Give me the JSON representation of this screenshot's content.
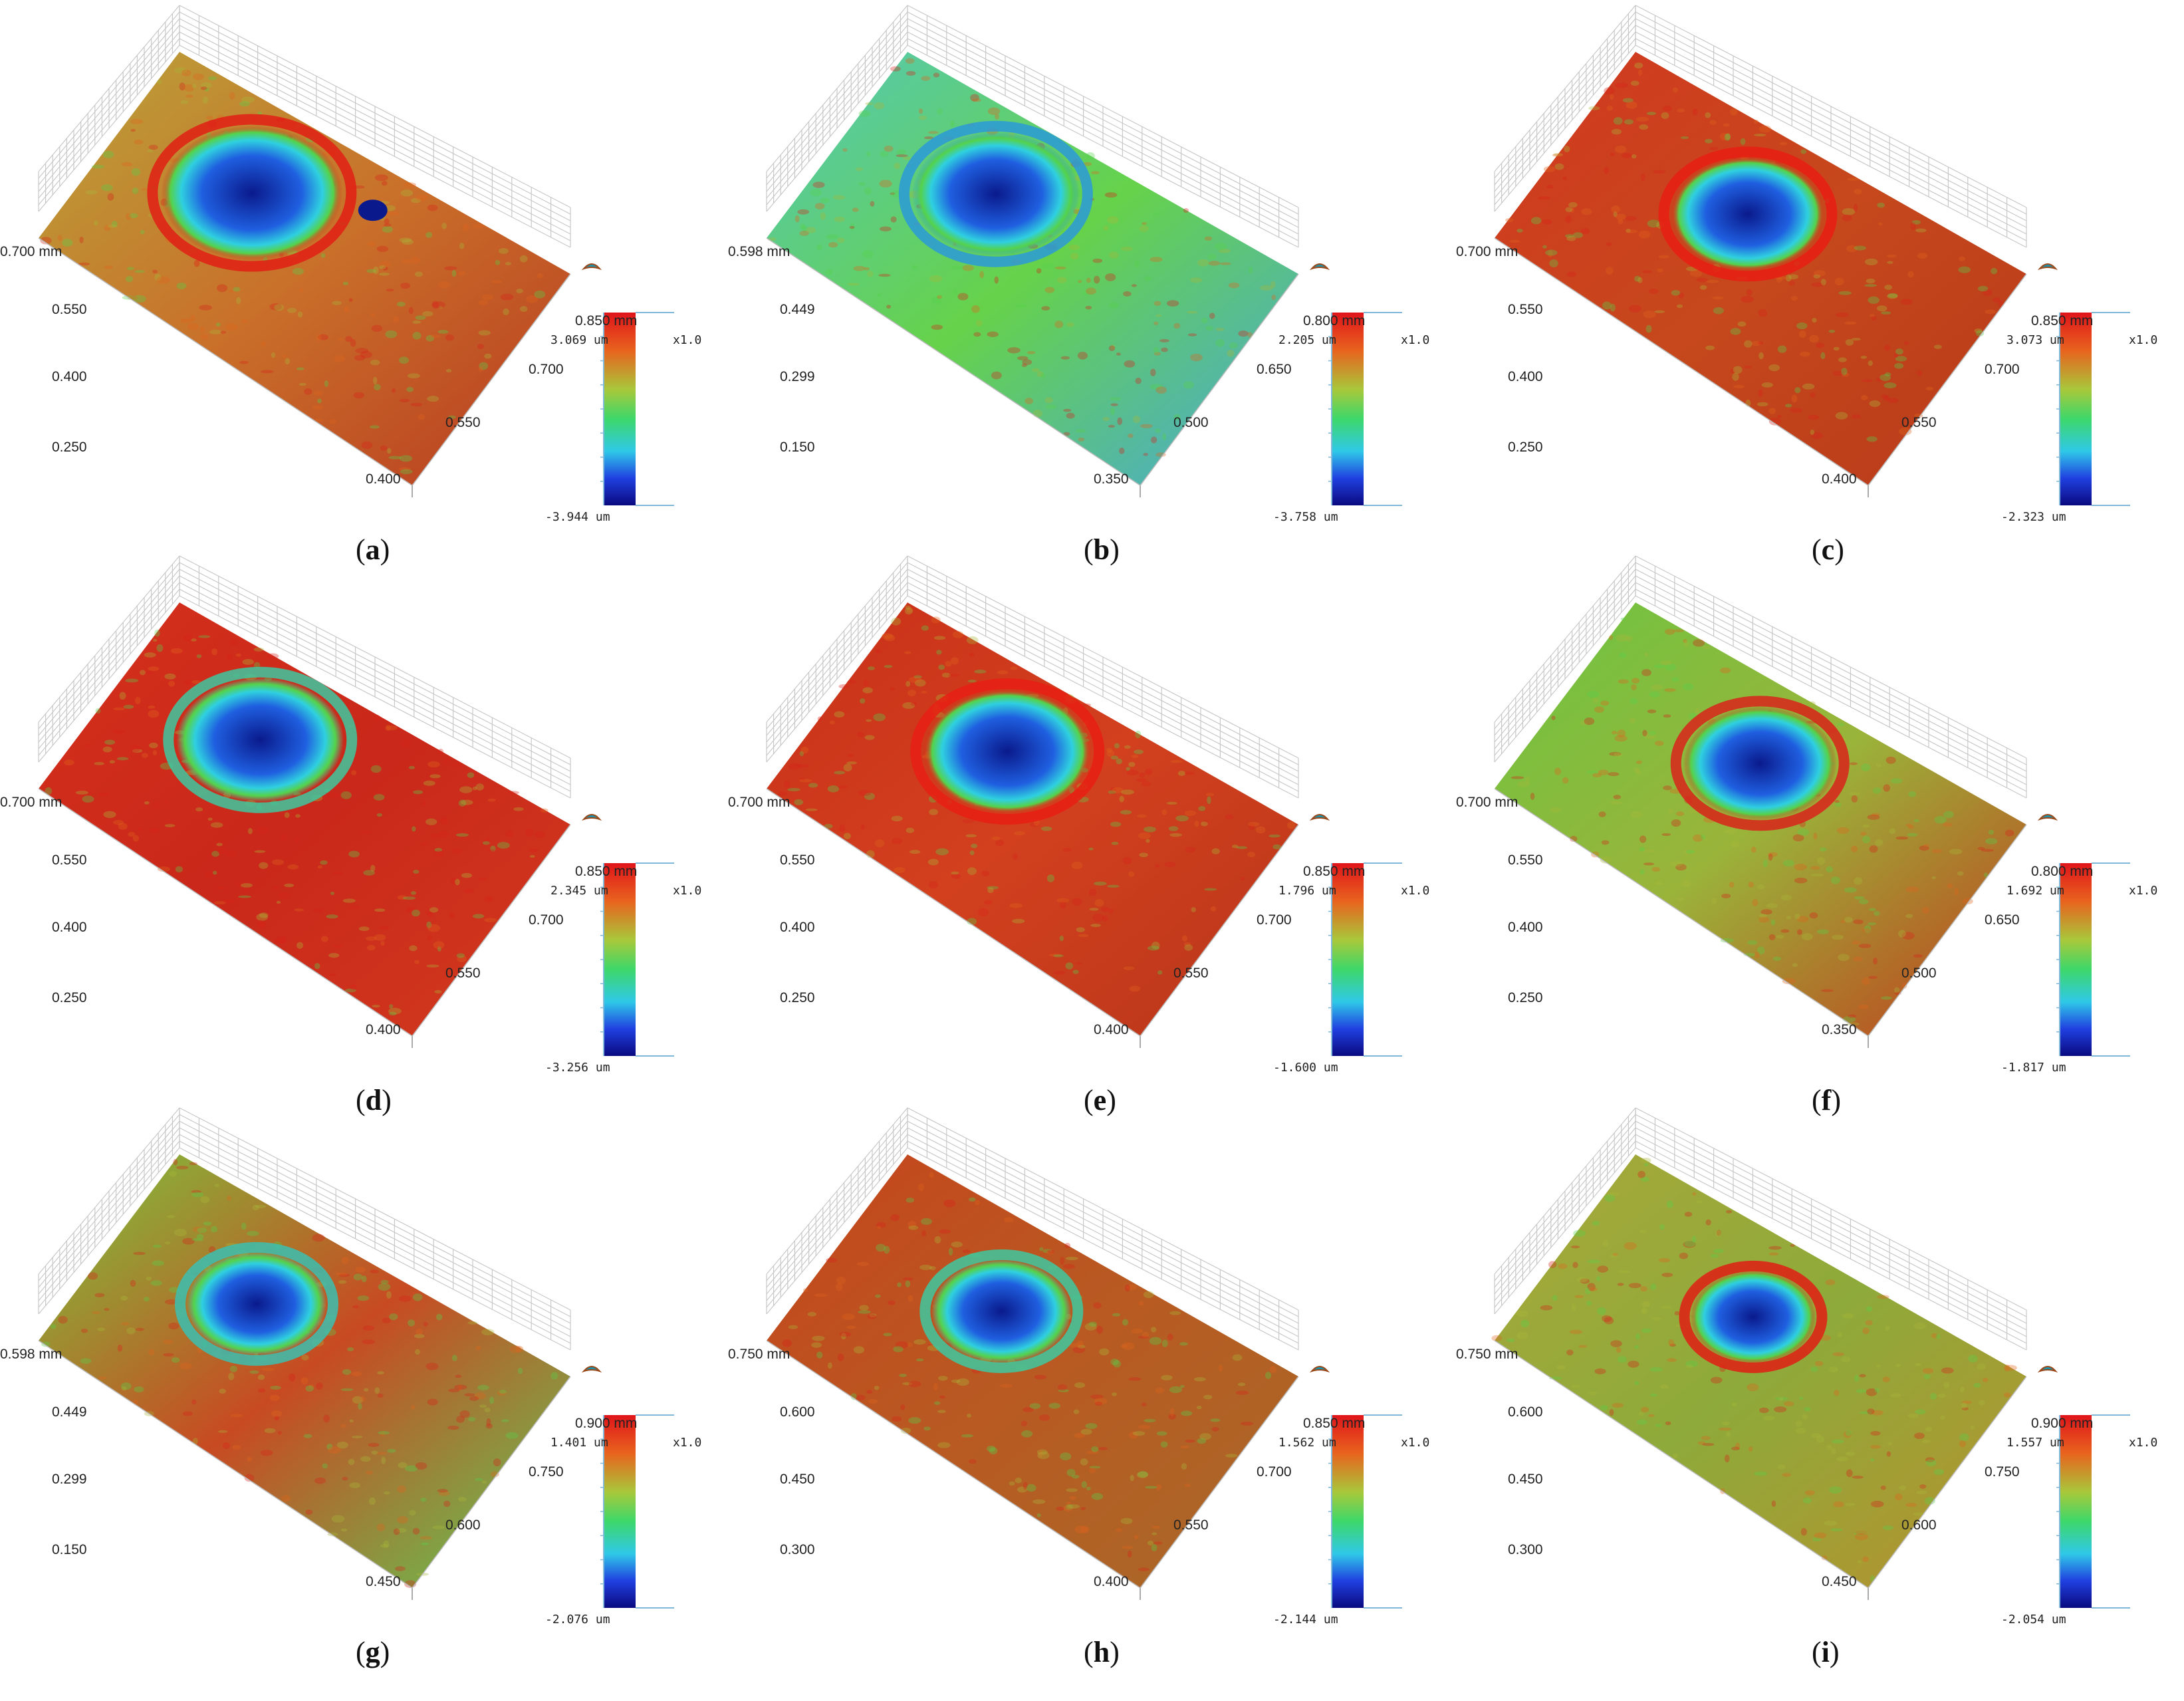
{
  "panels": [
    {
      "id": "a",
      "label": "a",
      "corner_mm": "0.700 mm",
      "left_ticks": [
        "0.550",
        "0.400",
        "0.250"
      ],
      "far_mm": "0.850 mm",
      "right_ticks": [
        "0.700",
        "0.550",
        "0.400"
      ],
      "cb_max": "3.069 um",
      "cb_min": "-3.944 um",
      "cb_scale": "x1.0"
    },
    {
      "id": "b",
      "label": "b",
      "corner_mm": "0.598 mm",
      "left_ticks": [
        "0.449",
        "0.299",
        "0.150"
      ],
      "far_mm": "0.800 mm",
      "right_ticks": [
        "0.650",
        "0.500",
        "0.350"
      ],
      "cb_max": "2.205 um",
      "cb_min": "-3.758 um",
      "cb_scale": "x1.0"
    },
    {
      "id": "c",
      "label": "c",
      "corner_mm": "0.700 mm",
      "left_ticks": [
        "0.550",
        "0.400",
        "0.250"
      ],
      "far_mm": "0.850 mm",
      "right_ticks": [
        "0.700",
        "0.550",
        "0.400"
      ],
      "cb_max": "3.073 um",
      "cb_min": "-2.323 um",
      "cb_scale": "x1.0"
    },
    {
      "id": "d",
      "label": "d",
      "corner_mm": "0.700 mm",
      "left_ticks": [
        "0.550",
        "0.400",
        "0.250"
      ],
      "far_mm": "0.850 mm",
      "right_ticks": [
        "0.700",
        "0.550",
        "0.400"
      ],
      "cb_max": "2.345 um",
      "cb_min": "-3.256 um",
      "cb_scale": "x1.0"
    },
    {
      "id": "e",
      "label": "e",
      "corner_mm": "0.700 mm",
      "left_ticks": [
        "0.550",
        "0.400",
        "0.250"
      ],
      "far_mm": "0.850 mm",
      "right_ticks": [
        "0.700",
        "0.550",
        "0.400"
      ],
      "cb_max": "1.796 um",
      "cb_min": "-1.600 um",
      "cb_scale": "x1.0"
    },
    {
      "id": "f",
      "label": "f",
      "corner_mm": "0.700 mm",
      "left_ticks": [
        "0.550",
        "0.400",
        "0.250"
      ],
      "far_mm": "0.800 mm",
      "right_ticks": [
        "0.650",
        "0.500",
        "0.350"
      ],
      "cb_max": "1.692 um",
      "cb_min": "-1.817 um",
      "cb_scale": "x1.0"
    },
    {
      "id": "g",
      "label": "g",
      "corner_mm": "0.598 mm",
      "left_ticks": [
        "0.449",
        "0.299",
        "0.150"
      ],
      "far_mm": "0.900 mm",
      "right_ticks": [
        "0.750",
        "0.600",
        "0.450"
      ],
      "cb_max": "1.401 um",
      "cb_min": "-2.076 um",
      "cb_scale": "x1.0"
    },
    {
      "id": "h",
      "label": "h",
      "corner_mm": "0.750 mm",
      "left_ticks": [
        "0.600",
        "0.450",
        "0.300"
      ],
      "far_mm": "0.850 mm",
      "right_ticks": [
        "0.700",
        "0.550",
        "0.400"
      ],
      "cb_max": "1.562 um",
      "cb_min": "-2.144 um",
      "cb_scale": "x1.0"
    },
    {
      "id": "i",
      "label": "i",
      "corner_mm": "0.750 mm",
      "left_ticks": [
        "0.600",
        "0.450",
        "0.300"
      ],
      "far_mm": "0.900 mm",
      "right_ticks": [
        "0.750",
        "0.600",
        "0.450"
      ],
      "cb_max": "1.557 um",
      "cb_min": "-2.054 um",
      "cb_scale": "x1.0"
    }
  ],
  "colors": {
    "deep_blue": "#0a1a8c",
    "blue": "#1f5fe0",
    "cyan": "#2fd0e0",
    "green": "#55d24a",
    "yellow_green": "#a8b83a",
    "orange": "#e0641e",
    "red": "#d8231a",
    "grid": "#c8c8c8"
  }
}
